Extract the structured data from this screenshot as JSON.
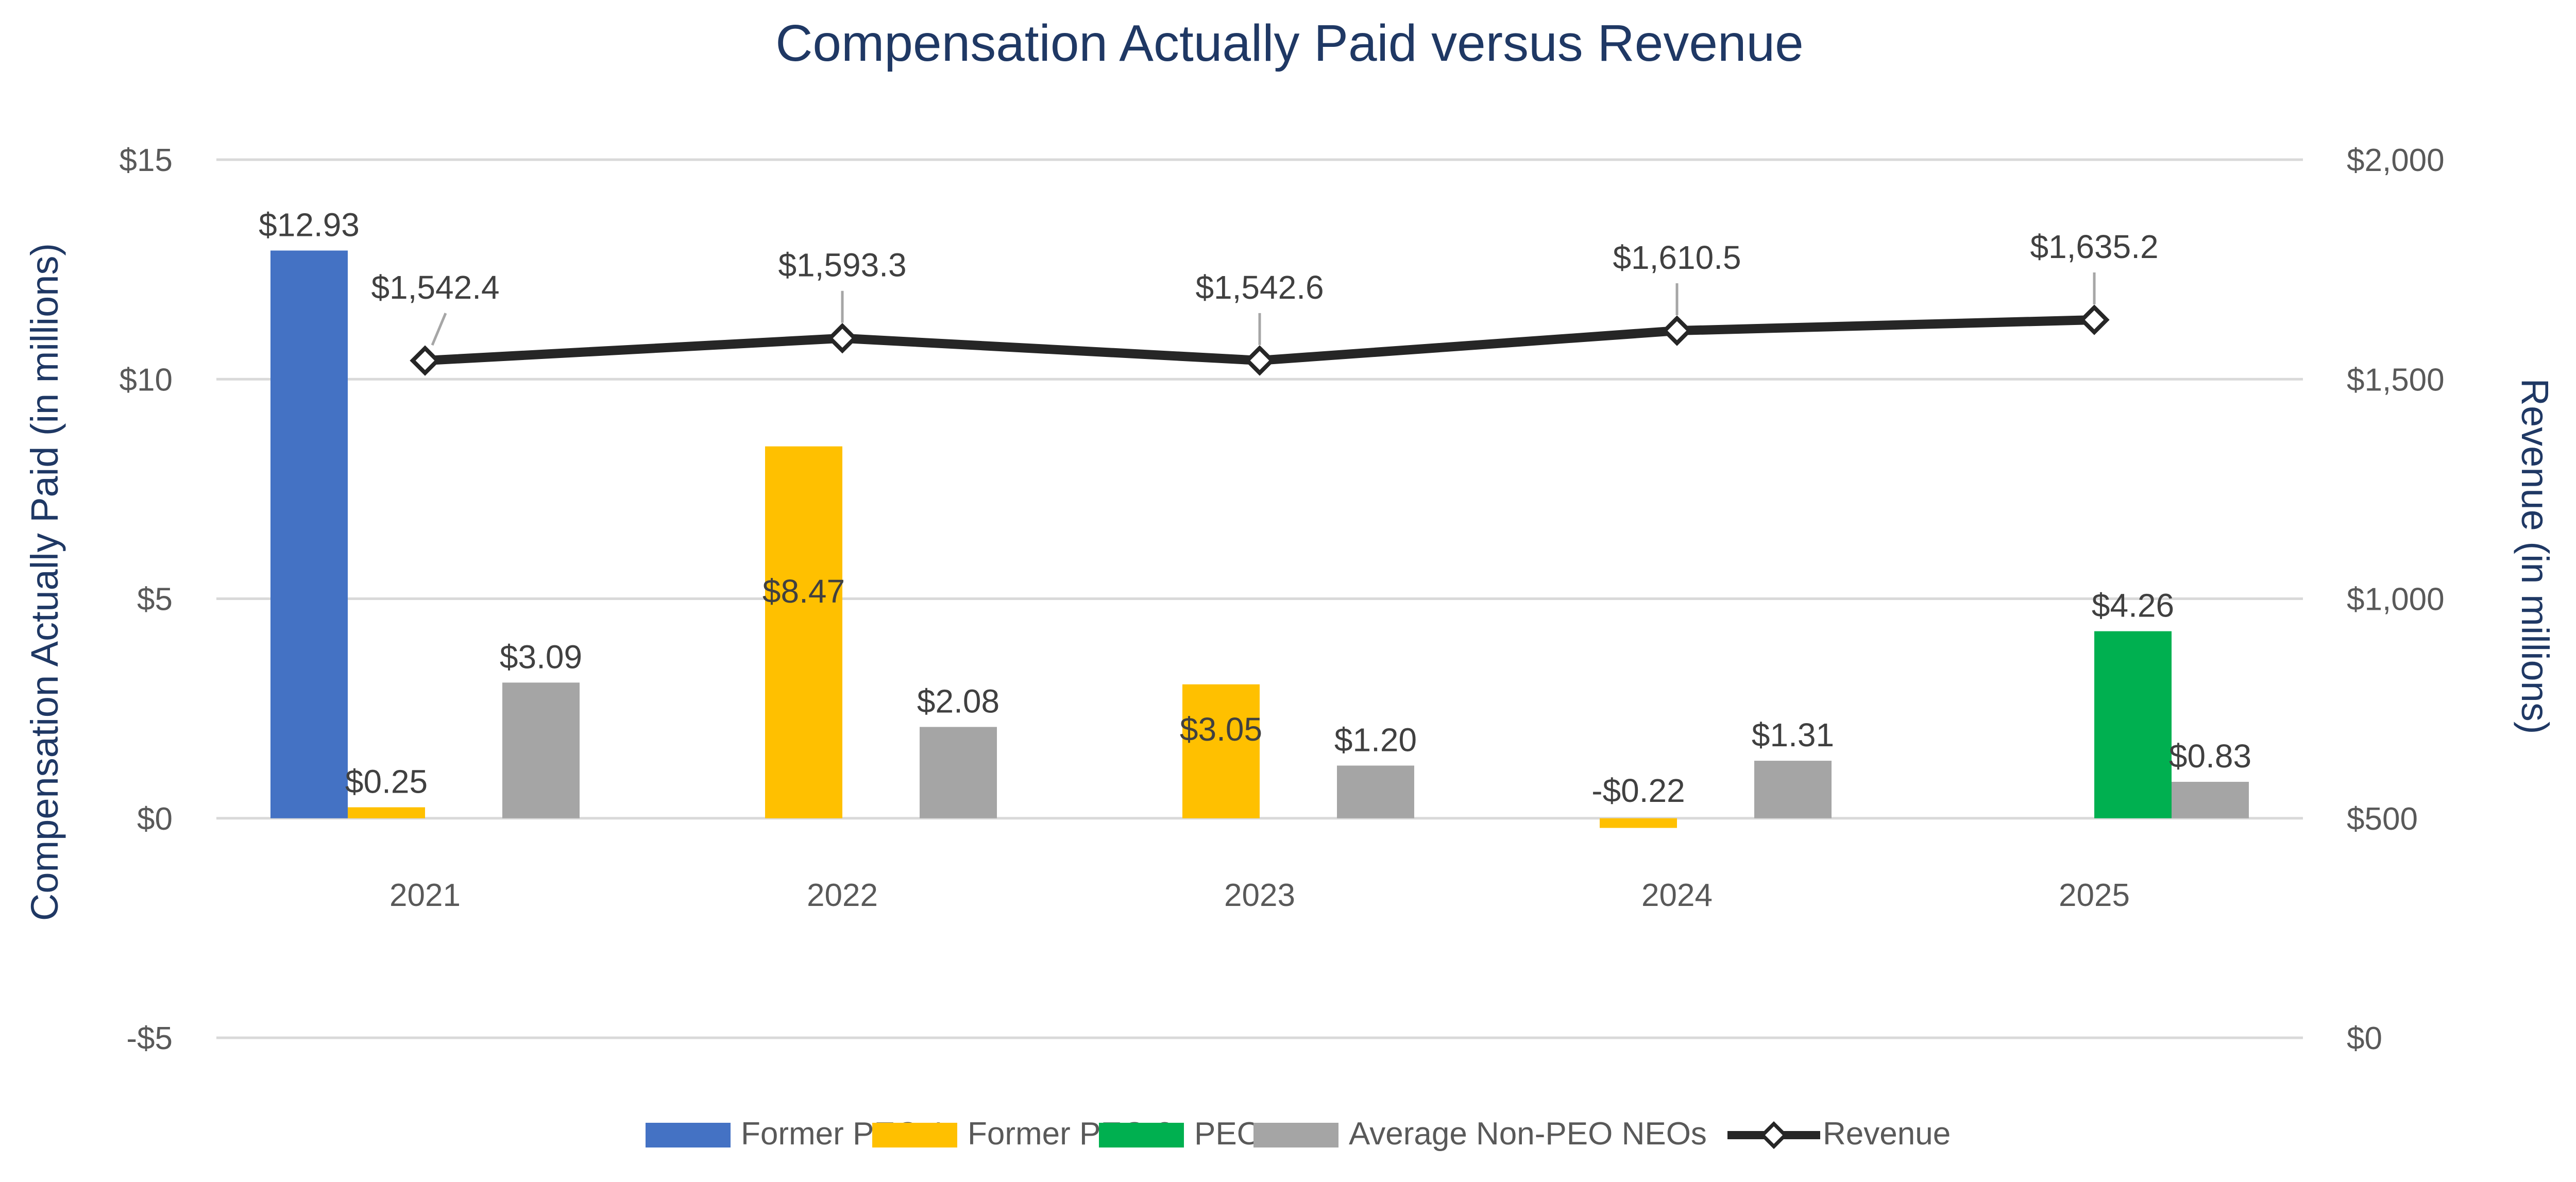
{
  "chart_data": {
    "type": "bar",
    "title": "Compensation Actually Paid versus Revenue",
    "categories": [
      "2021",
      "2022",
      "2023",
      "2024",
      "2025"
    ],
    "y_left": {
      "label": "Compensation Actually Paid (in millions)",
      "range": [
        -5,
        15
      ],
      "ticks": [
        -5,
        0,
        5,
        10,
        15
      ],
      "tick_labels": [
        "-$5",
        "$0",
        "$5",
        "$10",
        "$15"
      ]
    },
    "y_right": {
      "label": "Revenue (in millions)",
      "range": [
        0,
        2000
      ],
      "ticks": [
        0,
        500,
        1000,
        1500,
        2000
      ],
      "tick_labels": [
        "$0",
        "$500",
        "$1,000",
        "$1,500",
        "$2,000"
      ]
    },
    "grid": true,
    "legend_position": "bottom",
    "series": [
      {
        "name": "Former PEO 1",
        "type": "bar",
        "axis": "left",
        "color": "#4472c4",
        "values": [
          12.93,
          null,
          null,
          null,
          null
        ],
        "labels": [
          "$12.93",
          "",
          "",
          "",
          ""
        ]
      },
      {
        "name": "Former PEO 2",
        "type": "bar",
        "axis": "left",
        "color": "#ffc000",
        "values": [
          0.25,
          8.47,
          3.05,
          -0.22,
          null
        ],
        "labels": [
          "$0.25",
          "$8.47",
          "$3.05",
          "-$0.22",
          ""
        ]
      },
      {
        "name": "PEO",
        "type": "bar",
        "axis": "left",
        "color": "#00b050",
        "values": [
          null,
          null,
          null,
          null,
          4.26
        ],
        "labels": [
          "",
          "",
          "",
          "",
          "$4.26"
        ]
      },
      {
        "name": "Average Non-PEO NEOs",
        "type": "bar",
        "axis": "left",
        "color": "#a5a5a5",
        "values": [
          3.09,
          2.08,
          1.2,
          1.31,
          0.83
        ],
        "labels": [
          "$3.09",
          "$2.08",
          "$1.20",
          "$1.31",
          "$0.83"
        ]
      },
      {
        "name": "Revenue",
        "type": "line",
        "axis": "right",
        "color": "#262626",
        "values": [
          1542.4,
          1593.3,
          1542.6,
          1610.5,
          1635.2
        ],
        "labels": [
          "$1,542.4",
          "$1,593.3",
          "$1,542.6",
          "$1,610.5",
          "$1,635.2"
        ]
      }
    ]
  }
}
